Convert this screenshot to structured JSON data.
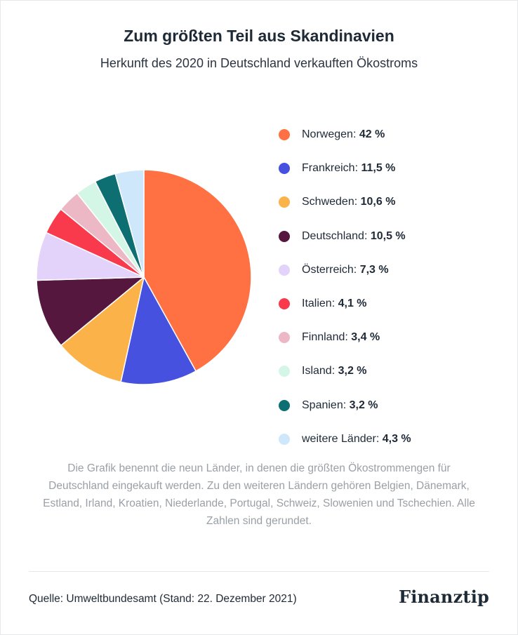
{
  "header": {
    "title": "Zum größten Teil aus Skandinavien",
    "subtitle": "Herkunft des 2020 in Deutschland verkauften Ökostroms"
  },
  "chart_data": {
    "type": "pie",
    "title": "Zum größten Teil aus Skandinavien",
    "subtitle": "Herkunft des 2020 in Deutschland verkauften Ökostroms",
    "legend_position": "right",
    "unit": "%",
    "slices": [
      {
        "label": "Norwegen",
        "value": 42,
        "value_text": "42 %",
        "color": "#FF7043"
      },
      {
        "label": "Frankreich",
        "value": 11.5,
        "value_text": "11,5 %",
        "color": "#4651E0"
      },
      {
        "label": "Schweden",
        "value": 10.6,
        "value_text": "10,6 %",
        "color": "#FBB249"
      },
      {
        "label": "Deutschland",
        "value": 10.5,
        "value_text": "10,5 %",
        "color": "#56173E"
      },
      {
        "label": "Österreich",
        "value": 7.3,
        "value_text": "7,3 %",
        "color": "#E3D3FB"
      },
      {
        "label": "Italien",
        "value": 4.1,
        "value_text": "4,1 %",
        "color": "#F93A4C"
      },
      {
        "label": "Finnland",
        "value": 3.4,
        "value_text": "3,4 %",
        "color": "#EDB8C6"
      },
      {
        "label": "Island",
        "value": 3.2,
        "value_text": "3,2 %",
        "color": "#D4F6E7"
      },
      {
        "label": "Spanien",
        "value": 3.2,
        "value_text": "3,2 %",
        "color": "#0E6F73"
      },
      {
        "label": "weitere Länder",
        "value": 4.3,
        "value_text": "4,3 %",
        "color": "#CFE7FB"
      }
    ]
  },
  "note": "Die Grafik benennt die neun Länder, in denen die größten Ökostrommengen für Deutschland eingekauft werden. Zu den weiteren Ländern gehören Belgien, Dänemark, Estland, Irland, Kroatien, Niederlande, Portugal, Schweiz, Slowenien und Tschechien. Alle Zahlen sind gerundet.",
  "footer": {
    "source": "Quelle: Umweltbundesamt (Stand: 22. Dezember 2021)",
    "logo": "Finanztip"
  }
}
